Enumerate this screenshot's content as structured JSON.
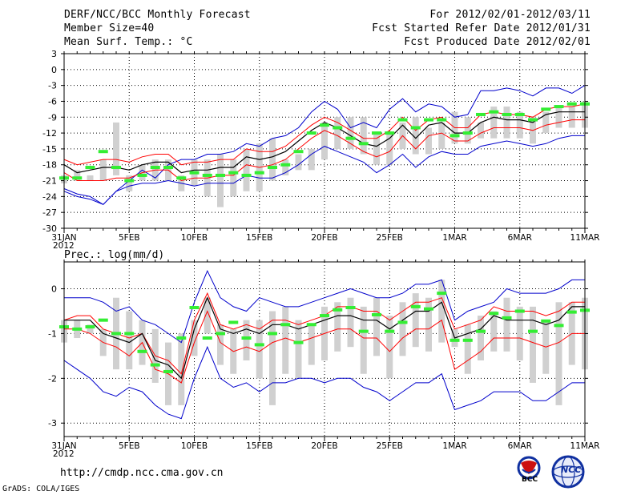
{
  "header": {
    "title": "DERF/NCC/BCC Monthly Forecast",
    "member_size": "Member Size=40",
    "variable": "Mean Surf. Temp.: °C",
    "forecast_period": "For 2012/02/01-2012/03/11",
    "started_refer": "Fcst Started Refer Date 2012/01/31",
    "produced": "Fcst Produced Date 2012/02/01"
  },
  "footer": {
    "url": "http://cmdp.ncc.cma.gov.cn",
    "grads": "GrADS: COLA/IGES",
    "logo_bcc": "BCC",
    "logo_ncc": "NCC"
  },
  "colors": {
    "envelope": "#0000cc",
    "spread": "#ff0000",
    "ensemble_mean": "#000000",
    "box": "#d0d0d0",
    "observed": "#33ee33",
    "grid": "#000000"
  },
  "chart_data": [
    {
      "type": "line",
      "title": "Mean Surf. Temp.: °C",
      "x": [
        0,
        1,
        2,
        3,
        4,
        5,
        6,
        7,
        8,
        9,
        10,
        11,
        12,
        13,
        14,
        15,
        16,
        17,
        18,
        19,
        20,
        21,
        22,
        23,
        24,
        25,
        26,
        27,
        28,
        29,
        30,
        31,
        32,
        33,
        34,
        35,
        36,
        37,
        38,
        39,
        40
      ],
      "x_tick_values": [
        0,
        5,
        10,
        15,
        20,
        25,
        30,
        35,
        40
      ],
      "x_tick_labels": [
        "31JAN\n2012",
        "5FEB",
        "10FEB",
        "15FEB",
        "20FEB",
        "25FEB",
        "1MAR",
        "6MAR",
        "11MAR"
      ],
      "ylim": [
        -30,
        3
      ],
      "y_ticks": [
        3,
        0,
        -3,
        -6,
        -9,
        -12,
        -15,
        -18,
        -21,
        -24,
        -27,
        -30
      ],
      "grid": true,
      "series": [
        {
          "name": "max",
          "values": [
            -23,
            -24,
            -24.5,
            -25.5,
            -23,
            -21,
            -19,
            -20.5,
            -18,
            -17,
            -17,
            -16,
            -16,
            -15.5,
            -14,
            -14.5,
            -13,
            -12.5,
            -11,
            -8,
            -6,
            -7.5,
            -11,
            -10,
            -11,
            -7.5,
            -5.5,
            -8,
            -6.5,
            -7,
            -9,
            -8.5,
            -4,
            -4,
            -3.5,
            -4,
            -5,
            -3.5,
            -3.5,
            -4.5,
            -3
          ]
        },
        {
          "name": "upper",
          "values": [
            -17,
            -18,
            -17.5,
            -17,
            -17,
            -17.5,
            -16.5,
            -16,
            -16,
            -18,
            -17.5,
            -17.5,
            -17,
            -17,
            -15,
            -15.5,
            -15.5,
            -14.5,
            -12.5,
            -10.5,
            -9,
            -10,
            -11.5,
            -13,
            -13,
            -11.5,
            -9,
            -11.5,
            -9.5,
            -9,
            -11,
            -11,
            -8.5,
            -8,
            -8.5,
            -8.5,
            -9,
            -7.5,
            -7,
            -7,
            -6.5
          ]
        },
        {
          "name": "mean",
          "values": [
            -18,
            -19.5,
            -19,
            -18.5,
            -18.5,
            -19,
            -18,
            -17.5,
            -17.5,
            -19.5,
            -19,
            -19,
            -18.5,
            -18.5,
            -16.5,
            -17,
            -16.5,
            -15.5,
            -13.5,
            -11.5,
            -10,
            -11,
            -12.5,
            -14,
            -14.5,
            -13,
            -10.5,
            -13,
            -10.5,
            -10,
            -12,
            -12,
            -10,
            -9,
            -9.5,
            -9.5,
            -10,
            -8.5,
            -8,
            -8,
            -8
          ]
        },
        {
          "name": "lower",
          "values": [
            -19.5,
            -21,
            -21,
            -21,
            -20.5,
            -20.5,
            -19.5,
            -19,
            -19,
            -21,
            -20.5,
            -20.5,
            -20,
            -20,
            -18,
            -18.5,
            -18,
            -17,
            -15,
            -13,
            -11.5,
            -12.5,
            -14,
            -15.5,
            -16.5,
            -15.5,
            -12.5,
            -15,
            -12.5,
            -12,
            -13.5,
            -13.5,
            -12,
            -11,
            -11,
            -11,
            -11.5,
            -10.5,
            -10,
            -9.5,
            -9.5
          ]
        },
        {
          "name": "min",
          "values": [
            -22.5,
            -23.5,
            -24,
            -25.5,
            -23,
            -22,
            -21.5,
            -21.5,
            -21,
            -21.5,
            -22,
            -21.5,
            -21.5,
            -21.5,
            -20,
            -20.5,
            -20.5,
            -19.5,
            -18,
            -16,
            -14.5,
            -15.5,
            -16.5,
            -17.5,
            -19.5,
            -18,
            -16,
            -18.5,
            -16.5,
            -15.5,
            -16,
            -16,
            -14.5,
            -14,
            -13.5,
            -14,
            -14.5,
            -14,
            -13,
            -12.5,
            -12.5
          ]
        },
        {
          "name": "box_high",
          "values": [
            -20,
            -19,
            -20,
            -17,
            -10,
            -20,
            -18,
            -17,
            -17,
            -20,
            -17,
            -17,
            -16,
            -17,
            -15,
            -14,
            -13,
            -17,
            -16,
            -15,
            -10,
            -9,
            -9,
            -9,
            -12,
            -12,
            -10,
            -9,
            -11,
            -10,
            -8,
            -9,
            -10,
            -7,
            -7,
            -8,
            -9,
            -8,
            -7,
            -7,
            -6
          ]
        },
        {
          "name": "box_low",
          "values": [
            -21.5,
            -21,
            -21,
            -21,
            -20,
            -23,
            -21,
            -21,
            -21,
            -23,
            -22,
            -24,
            -26,
            -24,
            -23,
            -23,
            -21,
            -20,
            -19,
            -19,
            -17,
            -15,
            -15,
            -16,
            -18,
            -18,
            -15,
            -16,
            -16,
            -15,
            -14,
            -14,
            -13,
            -13,
            -13,
            -13,
            -14,
            -12,
            -11,
            -11,
            -11
          ]
        },
        {
          "name": "observed",
          "values": [
            -20.5,
            -20.5,
            -18.5,
            -15.5,
            -18.5,
            -21,
            -20,
            -18.5,
            -18.5,
            -20.5,
            -19.5,
            -20,
            -20,
            -19.5,
            -20,
            -19.5,
            -18.5,
            -18,
            -15.5,
            -12,
            -10.5,
            -11,
            -13,
            -14,
            -12,
            -12,
            -9.5,
            -11,
            -9.5,
            -9.5,
            -12.5,
            -12,
            -8.5,
            -8,
            -8.5,
            -8.5,
            -9.5,
            -7.5,
            -7,
            -6.5,
            -6.5
          ]
        }
      ]
    },
    {
      "type": "line",
      "title": "Prec.: log(mm/d)",
      "x": [
        0,
        1,
        2,
        3,
        4,
        5,
        6,
        7,
        8,
        9,
        10,
        11,
        12,
        13,
        14,
        15,
        16,
        17,
        18,
        19,
        20,
        21,
        22,
        23,
        24,
        25,
        26,
        27,
        28,
        29,
        30,
        31,
        32,
        33,
        34,
        35,
        36,
        37,
        38,
        39,
        40
      ],
      "x_tick_values": [
        0,
        5,
        10,
        15,
        20,
        25,
        30,
        35,
        40
      ],
      "x_tick_labels": [
        "31JAN\n2012",
        "5FEB",
        "10FEB",
        "15FEB",
        "20FEB",
        "25FEB",
        "1MAR",
        "6MAR",
        "11MAR"
      ],
      "ylim": [
        -3.3,
        0.6
      ],
      "y_ticks": [
        0,
        -1,
        -2,
        -3
      ],
      "grid": true,
      "series": [
        {
          "name": "max",
          "values": [
            -0.2,
            -0.2,
            -0.2,
            -0.3,
            -0.5,
            -0.4,
            -0.7,
            -0.8,
            -1.0,
            -1.2,
            -0.3,
            0.4,
            -0.2,
            -0.4,
            -0.5,
            -0.2,
            -0.3,
            -0.4,
            -0.4,
            -0.3,
            -0.2,
            -0.1,
            0.0,
            -0.1,
            -0.2,
            -0.2,
            -0.1,
            0.1,
            0.1,
            0.2,
            -0.7,
            -0.5,
            -0.4,
            -0.3,
            0.0,
            -0.1,
            -0.1,
            -0.1,
            0.0,
            0.2,
            0.2
          ]
        },
        {
          "name": "upper",
          "values": [
            -0.7,
            -0.6,
            -0.6,
            -0.9,
            -1.0,
            -1.1,
            -1.0,
            -1.5,
            -1.6,
            -1.9,
            -0.7,
            -0.1,
            -0.8,
            -0.9,
            -0.8,
            -0.9,
            -0.7,
            -0.7,
            -0.8,
            -0.7,
            -0.6,
            -0.4,
            -0.4,
            -0.5,
            -0.5,
            -0.7,
            -0.5,
            -0.3,
            -0.3,
            -0.2,
            -0.9,
            -0.8,
            -0.7,
            -0.4,
            -0.5,
            -0.5,
            -0.5,
            -0.6,
            -0.5,
            -0.3,
            -0.3
          ]
        },
        {
          "name": "mean",
          "values": [
            -0.7,
            -0.7,
            -0.7,
            -1.0,
            -1.1,
            -1.2,
            -1.0,
            -1.6,
            -1.7,
            -2.0,
            -0.9,
            -0.2,
            -0.9,
            -1.0,
            -0.9,
            -1.0,
            -0.8,
            -0.8,
            -0.9,
            -0.8,
            -0.7,
            -0.6,
            -0.6,
            -0.7,
            -0.7,
            -0.9,
            -0.7,
            -0.5,
            -0.5,
            -0.3,
            -1.1,
            -1.0,
            -0.9,
            -0.6,
            -0.7,
            -0.7,
            -0.7,
            -0.8,
            -0.7,
            -0.4,
            -0.4
          ]
        },
        {
          "name": "lower",
          "values": [
            -0.9,
            -0.9,
            -1.0,
            -1.2,
            -1.3,
            -1.5,
            -1.2,
            -1.8,
            -1.9,
            -2.1,
            -1.2,
            -0.5,
            -1.2,
            -1.4,
            -1.3,
            -1.4,
            -1.2,
            -1.1,
            -1.2,
            -1.1,
            -1.0,
            -0.9,
            -0.9,
            -1.1,
            -1.1,
            -1.4,
            -1.1,
            -0.9,
            -0.9,
            -0.7,
            -1.8,
            -1.6,
            -1.4,
            -1.1,
            -1.1,
            -1.1,
            -1.2,
            -1.3,
            -1.2,
            -1.0,
            -1.0
          ]
        },
        {
          "name": "min",
          "values": [
            -1.6,
            -1.8,
            -2.0,
            -2.3,
            -2.4,
            -2.2,
            -2.3,
            -2.6,
            -2.8,
            -2.9,
            -2.0,
            -1.3,
            -2.0,
            -2.2,
            -2.1,
            -2.3,
            -2.1,
            -2.1,
            -2.0,
            -2.0,
            -2.1,
            -2.0,
            -2.0,
            -2.2,
            -2.3,
            -2.5,
            -2.3,
            -2.1,
            -2.1,
            -1.9,
            -2.7,
            -2.6,
            -2.5,
            -2.3,
            -2.3,
            -2.3,
            -2.5,
            -2.5,
            -2.3,
            -2.1,
            -2.1
          ]
        },
        {
          "name": "box_high",
          "values": [
            -0.7,
            -0.7,
            -0.8,
            -0.9,
            -0.2,
            -0.5,
            -0.7,
            -0.9,
            -1.2,
            -1.0,
            -0.7,
            -0.2,
            -0.8,
            -0.9,
            -0.7,
            -0.7,
            -0.5,
            -0.4,
            -0.7,
            -0.8,
            -0.4,
            -0.3,
            -0.2,
            -0.4,
            -0.2,
            -0.6,
            -0.3,
            -0.1,
            -0.2,
            0.2,
            -0.9,
            -0.8,
            -0.6,
            -0.5,
            -0.2,
            -0.4,
            -0.4,
            -0.7,
            -0.3,
            -0.3,
            -0.2
          ]
        },
        {
          "name": "box_low",
          "values": [
            -1.2,
            -1.1,
            -1.0,
            -1.5,
            -1.8,
            -1.8,
            -1.7,
            -2.1,
            -2.6,
            -2.6,
            -1.5,
            -1.0,
            -1.7,
            -1.9,
            -1.6,
            -2.0,
            -2.6,
            -1.9,
            -2.0,
            -1.7,
            -1.6,
            -1.4,
            -1.3,
            -1.9,
            -1.5,
            -2.0,
            -1.5,
            -1.3,
            -1.4,
            -1.2,
            -1.3,
            -1.9,
            -1.6,
            -1.4,
            -1.4,
            -1.6,
            -2.1,
            -1.9,
            -2.6,
            -1.7,
            -1.8
          ]
        },
        {
          "name": "observed",
          "values": [
            -0.85,
            -0.9,
            -0.85,
            -0.7,
            -1.0,
            -1.0,
            -1.4,
            -1.7,
            -1.85,
            -1.1,
            -0.42,
            -1.1,
            -1.0,
            -0.75,
            -1.1,
            -1.25,
            -1.0,
            -0.8,
            -1.2,
            -0.8,
            -0.6,
            -0.47,
            -0.42,
            -0.95,
            -0.58,
            -0.95,
            -0.75,
            -0.4,
            -0.45,
            -0.1,
            -1.15,
            -1.15,
            -0.95,
            -0.55,
            -0.65,
            -0.5,
            -0.95,
            -0.72,
            -0.82,
            -0.52,
            -0.48
          ]
        }
      ]
    }
  ]
}
